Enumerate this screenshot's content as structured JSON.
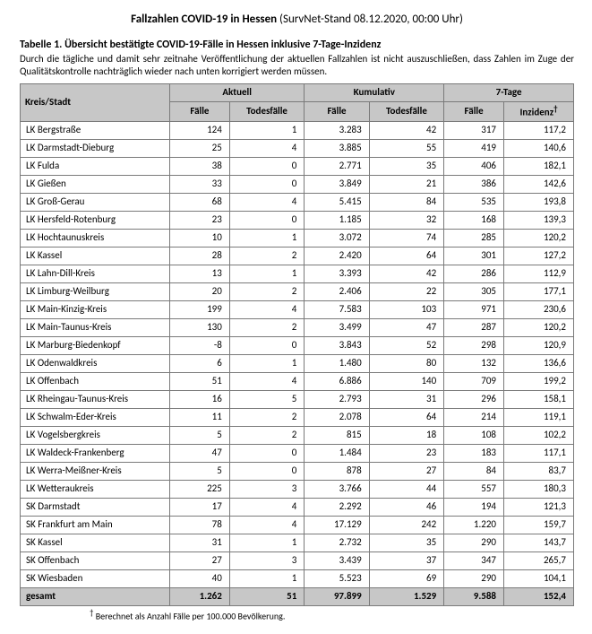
{
  "page_title_bold": "Fallzahlen COVID-19 in Hessen",
  "page_title_rest": " (SurvNet-Stand 08.12.2020, 00:00 Uhr)",
  "table_caption": "Tabelle 1. Übersicht bestätigte COVID-19-Fälle in Hessen inklusive 7-Tage-Inzidenz",
  "table_note": "Durch die tägliche und damit sehr zeitnahe Veröffentlichung der aktuellen Fallzahlen ist nicht auszuschließen, dass Zahlen im Zuge der Qualitätskontrolle nachträglich wieder nach unten korrigiert werden müssen.",
  "group_headers": [
    "Aktuell",
    "Kumulativ",
    "7-Tage"
  ],
  "col_headers": {
    "district": "Kreis/Stadt",
    "cases": "Fälle",
    "deaths": "Todesfälle",
    "cum_cases": "Fälle",
    "cum_deaths": "Todesfälle",
    "week_cases": "Fälle",
    "incidence": "Inzidenz"
  },
  "rows": [
    {
      "label": "LK Bergstraße",
      "c": "124",
      "d": "1",
      "cc": "3.283",
      "cd": "42",
      "wc": "317",
      "inc": "117,2"
    },
    {
      "label": "LK Darmstadt-Dieburg",
      "c": "25",
      "d": "4",
      "cc": "3.885",
      "cd": "55",
      "wc": "419",
      "inc": "140,6"
    },
    {
      "label": "LK Fulda",
      "c": "38",
      "d": "0",
      "cc": "2.771",
      "cd": "35",
      "wc": "406",
      "inc": "182,1"
    },
    {
      "label": "LK Gießen",
      "c": "33",
      "d": "0",
      "cc": "3.849",
      "cd": "21",
      "wc": "386",
      "inc": "142,6"
    },
    {
      "label": "LK Groß-Gerau",
      "c": "68",
      "d": "4",
      "cc": "5.415",
      "cd": "84",
      "wc": "535",
      "inc": "193,8"
    },
    {
      "label": "LK Hersfeld-Rotenburg",
      "c": "23",
      "d": "0",
      "cc": "1.185",
      "cd": "32",
      "wc": "168",
      "inc": "139,3"
    },
    {
      "label": "LK Hochtaunuskreis",
      "c": "10",
      "d": "1",
      "cc": "3.072",
      "cd": "74",
      "wc": "285",
      "inc": "120,2"
    },
    {
      "label": "LK Kassel",
      "c": "28",
      "d": "2",
      "cc": "2.420",
      "cd": "64",
      "wc": "301",
      "inc": "127,2"
    },
    {
      "label": "LK Lahn-Dill-Kreis",
      "c": "13",
      "d": "1",
      "cc": "3.393",
      "cd": "42",
      "wc": "286",
      "inc": "112,9"
    },
    {
      "label": "LK Limburg-Weilburg",
      "c": "20",
      "d": "2",
      "cc": "2.406",
      "cd": "22",
      "wc": "305",
      "inc": "177,1"
    },
    {
      "label": "LK Main-Kinzig-Kreis",
      "c": "199",
      "d": "4",
      "cc": "7.583",
      "cd": "103",
      "wc": "971",
      "inc": "230,6"
    },
    {
      "label": "LK Main-Taunus-Kreis",
      "c": "130",
      "d": "2",
      "cc": "3.499",
      "cd": "47",
      "wc": "287",
      "inc": "120,2"
    },
    {
      "label": "LK Marburg-Biedenkopf",
      "c": "-8",
      "d": "0",
      "cc": "3.843",
      "cd": "52",
      "wc": "298",
      "inc": "120,9"
    },
    {
      "label": "LK Odenwaldkreis",
      "c": "6",
      "d": "1",
      "cc": "1.480",
      "cd": "80",
      "wc": "132",
      "inc": "136,6"
    },
    {
      "label": "LK Offenbach",
      "c": "51",
      "d": "4",
      "cc": "6.886",
      "cd": "140",
      "wc": "709",
      "inc": "199,2"
    },
    {
      "label": "LK Rheingau-Taunus-Kreis",
      "c": "16",
      "d": "5",
      "cc": "2.793",
      "cd": "31",
      "wc": "296",
      "inc": "158,1"
    },
    {
      "label": "LK Schwalm-Eder-Kreis",
      "c": "11",
      "d": "2",
      "cc": "2.078",
      "cd": "64",
      "wc": "214",
      "inc": "119,1"
    },
    {
      "label": "LK Vogelsbergkreis",
      "c": "5",
      "d": "2",
      "cc": "815",
      "cd": "18",
      "wc": "108",
      "inc": "102,2"
    },
    {
      "label": "LK Waldeck-Frankenberg",
      "c": "47",
      "d": "0",
      "cc": "1.484",
      "cd": "23",
      "wc": "183",
      "inc": "117,1"
    },
    {
      "label": "LK Werra-Meißner-Kreis",
      "c": "5",
      "d": "0",
      "cc": "878",
      "cd": "27",
      "wc": "84",
      "inc": "83,7"
    },
    {
      "label": "LK Wetteraukreis",
      "c": "225",
      "d": "3",
      "cc": "3.766",
      "cd": "44",
      "wc": "557",
      "inc": "180,3"
    },
    {
      "label": "SK Darmstadt",
      "c": "17",
      "d": "4",
      "cc": "2.292",
      "cd": "46",
      "wc": "194",
      "inc": "121,3"
    },
    {
      "label": "SK Frankfurt am Main",
      "c": "78",
      "d": "4",
      "cc": "17.129",
      "cd": "242",
      "wc": "1.220",
      "inc": "159,7"
    },
    {
      "label": "SK Kassel",
      "c": "31",
      "d": "1",
      "cc": "2.732",
      "cd": "35",
      "wc": "290",
      "inc": "143,7"
    },
    {
      "label": "SK Offenbach",
      "c": "27",
      "d": "3",
      "cc": "3.439",
      "cd": "37",
      "wc": "347",
      "inc": "265,7"
    },
    {
      "label": "SK Wiesbaden",
      "c": "40",
      "d": "1",
      "cc": "5.523",
      "cd": "69",
      "wc": "290",
      "inc": "104,1"
    }
  ],
  "total": {
    "label": "gesamt",
    "c": "1.262",
    "d": "51",
    "cc": "97.899",
    "cd": "1.529",
    "wc": "9.588",
    "inc": "152,4"
  },
  "footnote_marker": "†",
  "footnote_text": " Berechnet als Anzahl Fälle per 100.000 Bevölkerung."
}
